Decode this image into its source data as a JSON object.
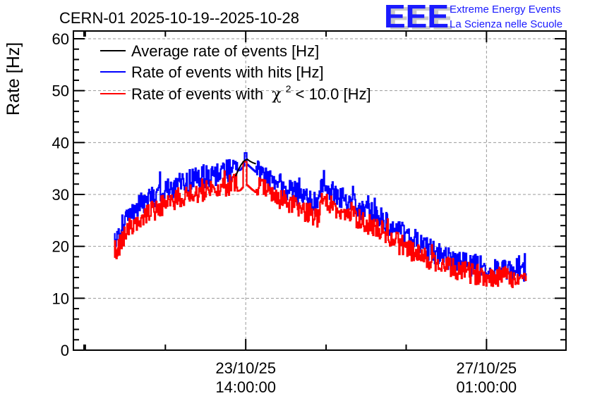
{
  "header": {
    "title": "CERN-01 2025-10-19--2025-10-28",
    "logo": {
      "mark": "EEE",
      "line1": "Extreme Energy Events",
      "line2": "La Scienza nelle Scuole",
      "color": "#1a1aff",
      "shadow_color": "#c8c8c8"
    }
  },
  "chart_data": {
    "type": "line",
    "title": "CERN-01 2025-10-19--2025-10-28",
    "xlabel": "",
    "ylabel": "Rate [Hz]",
    "ylim": [
      0,
      60
    ],
    "yticks": [
      0,
      10,
      20,
      30,
      40,
      50,
      60
    ],
    "xlim_hours_from_first_label": [
      -59.4,
      110.4
    ],
    "xticks_major": [
      {
        "hours": 0,
        "label_date": "23/10/25",
        "label_time": "14:00:00"
      },
      {
        "hours": 83,
        "label_date": "27/10/25",
        "label_time": "01:00:00"
      }
    ],
    "xticks_minor_hours": [
      -55.3,
      -27.7,
      27.7,
      55.3,
      110.4
    ],
    "grid": true,
    "legend": {
      "placement": "top-left",
      "entries": [
        {
          "label": "Average rate of events [Hz]",
          "color": "#000000"
        },
        {
          "label": "Rate of events with hits [Hz]",
          "color": "#0000ff"
        },
        {
          "label": "Rate of events with",
          "chi_symbol": "χ",
          "superscript": "2",
          "suffix": " < 10.0 [Hz]",
          "color": "#ff0000"
        }
      ]
    },
    "series": [
      {
        "name": "Rate of events with hits [Hz]",
        "color": "#0000ff",
        "envelope_hours": [
          -45.4,
          -40,
          -35,
          -30,
          -25,
          -20,
          -15,
          -10,
          -5,
          -2,
          0,
          2,
          5,
          10,
          15,
          20,
          25,
          25.5,
          30,
          35,
          40,
          45,
          50,
          55,
          60,
          65,
          70,
          75,
          80,
          85,
          90,
          96.6
        ],
        "envelope_mean": [
          22.5,
          26.5,
          28.5,
          30.3,
          31.5,
          32.5,
          33.3,
          34.0,
          34.8,
          35.2,
          36.5,
          35.5,
          34.0,
          32.3,
          30.8,
          29.3,
          28.0,
          31.5,
          30.3,
          28.8,
          27.3,
          26.0,
          24.2,
          22.0,
          20.2,
          18.8,
          17.6,
          16.8,
          16.2,
          15.8,
          15.6,
          15.4
        ],
        "noise_amplitude": 2.2
      },
      {
        "name": "Rate of events with χ2 < 10.0 [Hz]",
        "color": "#ff0000",
        "envelope_hours": [
          -45.4,
          -40,
          -35,
          -30,
          -25,
          -20,
          -15,
          -10,
          -5,
          -2,
          0,
          2,
          5,
          10,
          15,
          20,
          25,
          25.5,
          30,
          35,
          40,
          45,
          50,
          55,
          60,
          65,
          70,
          75,
          80,
          85,
          90,
          96.6
        ],
        "envelope_mean": [
          20.0,
          23.8,
          25.8,
          27.6,
          28.8,
          29.8,
          30.6,
          31.2,
          31.8,
          32.3,
          33.5,
          32.5,
          31.2,
          29.6,
          28.2,
          26.8,
          25.6,
          29.0,
          27.8,
          26.3,
          24.9,
          23.6,
          21.8,
          19.8,
          18.2,
          16.9,
          15.8,
          15.1,
          14.6,
          14.2,
          14.0,
          13.9
        ],
        "noise_amplitude": 2.0
      },
      {
        "name": "Average rate of events [Hz]",
        "color": "#000000",
        "note": "visible only near the gap around hours -3..+4",
        "x_hours": [
          -3.5,
          -2.5,
          -1.5,
          -0.5,
          0.5,
          1.5,
          2.5,
          3.5
        ],
        "values": [
          33.5,
          34.8,
          35.8,
          36.5,
          36.8,
          36.4,
          36.1,
          35.9
        ]
      }
    ]
  }
}
